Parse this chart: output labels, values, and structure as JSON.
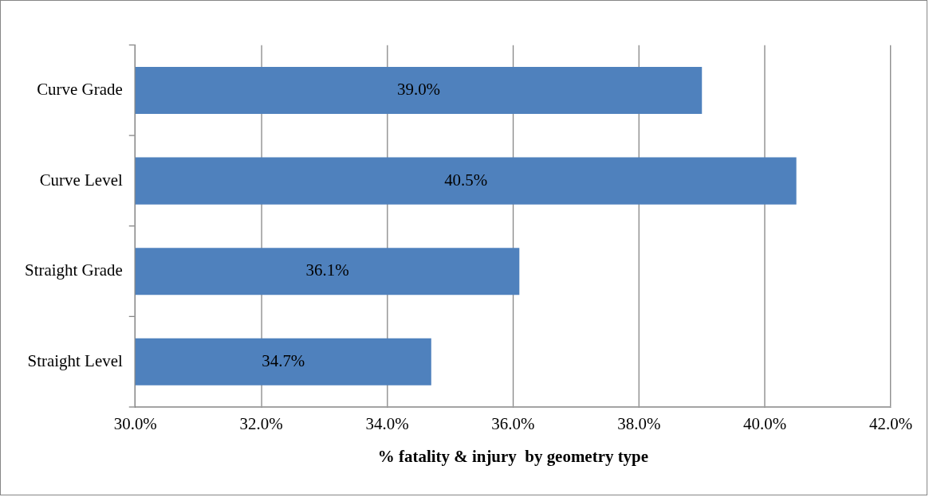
{
  "chart_data": {
    "type": "bar",
    "orientation": "horizontal",
    "xlabel": "% fatality & injury  by geometry type",
    "categories": [
      "Curve Grade",
      "Curve Level",
      "Straight Grade",
      "Straight Level"
    ],
    "values": [
      39.0,
      40.5,
      36.1,
      34.7
    ],
    "value_labels": [
      "39.0%",
      "40.5%",
      "36.1%",
      "34.7%"
    ],
    "color": "#4f81bd",
    "xlim": [
      30,
      42
    ],
    "xticks": [
      {
        "value": 30,
        "label": "30.0%"
      },
      {
        "value": 32,
        "label": "32.0%"
      },
      {
        "value": 34,
        "label": "34.0%"
      },
      {
        "value": 36,
        "label": "36.0%"
      },
      {
        "value": 38,
        "label": "38.0%"
      },
      {
        "value": 40,
        "label": "40.0%"
      },
      {
        "value": 42,
        "label": "42.0%"
      }
    ],
    "grid": "x",
    "legend": false
  }
}
